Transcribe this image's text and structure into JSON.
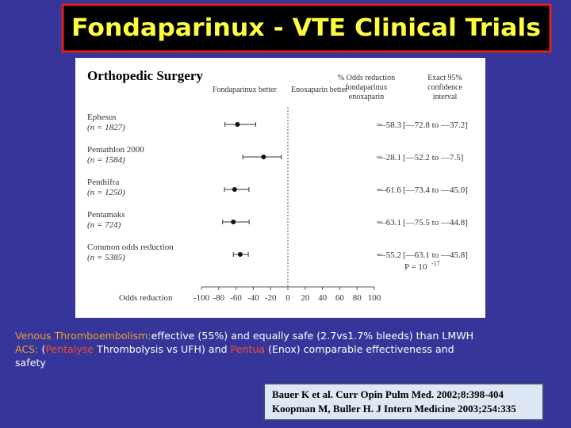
{
  "title": "Fondaparinux - VTE Clinical Trials",
  "figure": {
    "heading": "Orthopedic Surgery",
    "favors_left": "Fondaparinux better",
    "favors_right": "Enoxaparin better",
    "col_reduction": [
      "% Odds reduction",
      "fondaparinux",
      "enoxaparin"
    ],
    "col_ci": [
      "Exact 95%",
      "confidence",
      "interval"
    ],
    "axis_label": "Odds reduction",
    "xlim": [
      -100,
      100
    ],
    "xticks": [
      -100,
      -80,
      -60,
      -40,
      -20,
      0,
      20,
      40,
      60,
      80,
      100
    ],
    "studies": [
      {
        "name": "Ephesus",
        "n": "(n = 1827)",
        "odds_reduction": -58.3,
        "ci_low": -72.8,
        "ci_high": -37.2,
        "value_label": "—58.3",
        "ci_label": "[—72.8 to —37.2]"
      },
      {
        "name": "Pentathlon 2000",
        "n": "(n = 1584)",
        "odds_reduction": -28.1,
        "ci_low": -52.2,
        "ci_high": -7.5,
        "value_label": "—28.1",
        "ci_label": "[—52.2 to —7.5]"
      },
      {
        "name": "Penthifra",
        "n": "(n = 1250)",
        "odds_reduction": -61.6,
        "ci_low": -73.4,
        "ci_high": -45.0,
        "value_label": "—61.6",
        "ci_label": "[—73.4 to —45.0]"
      },
      {
        "name": "Pentamaks",
        "n": "(n = 724)",
        "odds_reduction": -63.1,
        "ci_low": -75.5,
        "ci_high": -44.8,
        "value_label": "—63.1",
        "ci_label": "[—75.5 to —44.8]"
      },
      {
        "name": "Common odds reduction",
        "n": "(n = 5385)",
        "odds_reduction": -55.2,
        "ci_low": -63.1,
        "ci_high": -45.8,
        "value_label": "—55.2",
        "ci_label": "[—63.1 to —45.8]"
      }
    ],
    "p_value": {
      "text": "P = 10",
      "exponent": "-17"
    }
  },
  "notes": [
    [
      {
        "text": "Venous Thromboembolism:",
        "color": "#f0a030"
      },
      {
        "text": "effective (55%) and equally safe (2.7vs1.7% bleeds) than LMWH",
        "color": "#ffffff"
      }
    ],
    [
      {
        "text": "ACS:",
        "color": "#f0a030"
      },
      {
        "text": " (",
        "color": "#ffffff"
      },
      {
        "text": "Pentalyse",
        "color": "#ff4a2a"
      },
      {
        "text": " Thrombolysis vs UFH) and ",
        "color": "#ffffff"
      },
      {
        "text": "Pentua",
        "color": "#ff4a2a"
      },
      {
        "text": " (Enox) comparable effectiveness and",
        "color": "#ffffff"
      }
    ],
    [
      {
        "text": "safety",
        "color": "#ffffff"
      }
    ]
  ],
  "references": [
    "Bauer K et al. Curr Opin Pulm Med. 2002;8:398-404",
    "Koopman M, Buller H. J Intern Medicine 2003;254:335"
  ]
}
